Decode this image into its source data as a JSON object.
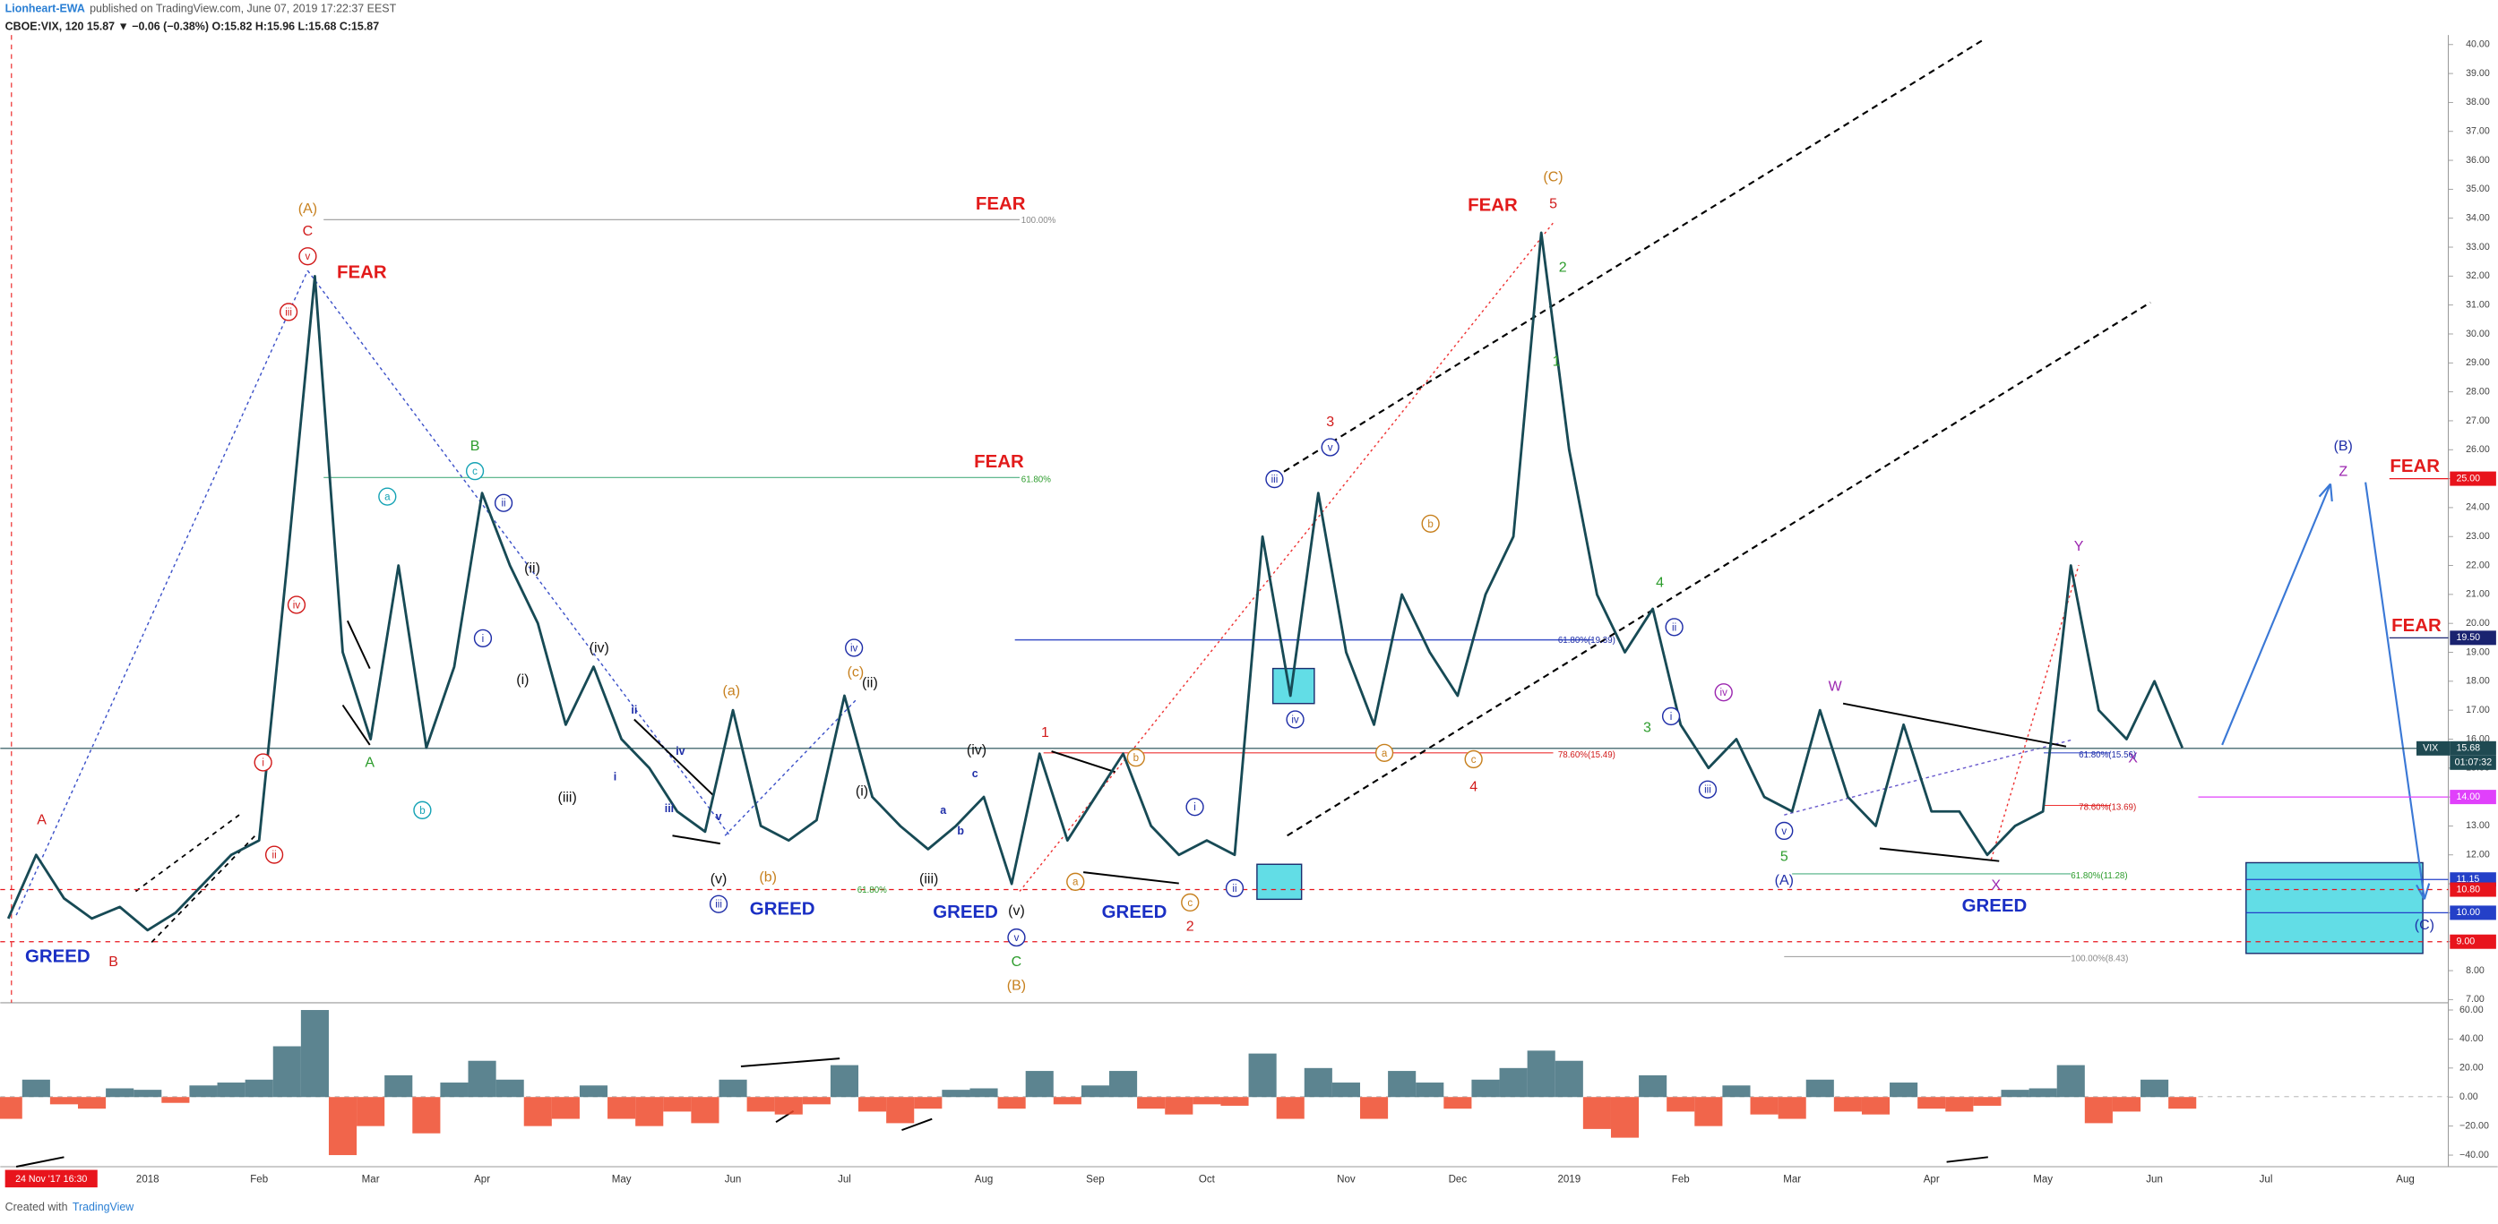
{
  "chart_data": {
    "type": "line",
    "author": "Lionheart-EWA",
    "published": "published on TradingView.com, June 07, 2019 17:22:37 EEST",
    "quote": "CBOE:VIX, 120  15.87  ▼ −0.06 (−0.38%)  O:15.82  H:15.96  L:15.68  C:15.87",
    "date_box": "24 Nov '17  16:30",
    "footer": "Created with",
    "footer_brand": "TradingView",
    "last_symbol": "VIX",
    "countdown": "01:07:32",
    "categories": [
      null,
      null,
      null,
      null,
      null,
      "2018",
      null,
      null,
      null,
      "Feb",
      null,
      null,
      null,
      "Mar",
      null,
      null,
      null,
      "Apr",
      null,
      null,
      null,
      null,
      "May",
      null,
      null,
      null,
      "Jun",
      null,
      null,
      null,
      "Jul",
      null,
      null,
      null,
      null,
      "Aug",
      null,
      null,
      null,
      "Sep",
      null,
      null,
      null,
      "Oct",
      null,
      null,
      null,
      null,
      "Nov",
      null,
      null,
      null,
      "Dec",
      null,
      null,
      null,
      "2019",
      null,
      null,
      null,
      "Feb",
      null,
      null,
      null,
      "Mar",
      null,
      null,
      null,
      null,
      "Apr",
      null,
      null,
      null,
      "May",
      null,
      null,
      null,
      "Jun",
      null,
      null,
      null,
      "Jul",
      null,
      null,
      null,
      null,
      "Aug",
      null
    ],
    "series": [
      {
        "name": "VIX",
        "color": "#174a55",
        "values": [
          9.8,
          12.0,
          10.5,
          9.8,
          10.2,
          9.4,
          10.0,
          11.0,
          12.0,
          12.5,
          22,
          32,
          19,
          16,
          22,
          15.7,
          18.5,
          24.5,
          22,
          20,
          16.5,
          18.5,
          16,
          15,
          13.5,
          12.8,
          17,
          13,
          12.5,
          13.2,
          17.5,
          14,
          13,
          12.2,
          13,
          14,
          11,
          15.5,
          12.5,
          14,
          15.5,
          13,
          12,
          12.5,
          12,
          23,
          17.5,
          24.5,
          19,
          16.5,
          21,
          19,
          17.5,
          21,
          23,
          33.5,
          26,
          21,
          19,
          20.5,
          16.5,
          15,
          16,
          14,
          13.5,
          17,
          14,
          13,
          16.5,
          13.5,
          13.5,
          12,
          13,
          13.5,
          22,
          17,
          16,
          18,
          15.7,
          null,
          null,
          null,
          null,
          null,
          null,
          null,
          null,
          null
        ]
      }
    ],
    "ylim": [
      7,
      40
    ],
    "yticks": [
      {
        "value": 7,
        "label": "7.00"
      },
      {
        "value": 8,
        "label": "8.00"
      },
      {
        "value": 9,
        "label": "9.00"
      },
      {
        "value": 10,
        "label": "10.00"
      },
      {
        "value": 11,
        "label": "11.00"
      },
      {
        "value": 12,
        "label": "12.00"
      },
      {
        "value": 13,
        "label": "13.00"
      },
      {
        "value": 14,
        "label": "14.00"
      },
      {
        "value": 15,
        "label": "15.00"
      },
      {
        "value": 16,
        "label": "16.00"
      },
      {
        "value": 17,
        "label": "17.00"
      },
      {
        "value": 18,
        "label": "18.00"
      },
      {
        "value": 19,
        "label": "19.00"
      },
      {
        "value": 20,
        "label": "20.00"
      },
      {
        "value": 21,
        "label": "21.00"
      },
      {
        "value": 22,
        "label": "22.00"
      },
      {
        "value": 23,
        "label": "23.00"
      },
      {
        "value": 24,
        "label": "24.00"
      },
      {
        "value": 25,
        "label": "25.00"
      },
      {
        "value": 26,
        "label": "26.00"
      },
      {
        "value": 27,
        "label": "27.00"
      },
      {
        "value": 28,
        "label": "28.00"
      },
      {
        "value": 29,
        "label": "29.00"
      },
      {
        "value": 30,
        "label": "30.00"
      },
      {
        "value": 31,
        "label": "31.00"
      },
      {
        "value": 32,
        "label": "32.00"
      },
      {
        "value": 33,
        "label": "33.00"
      },
      {
        "value": 34,
        "label": "34.00"
      },
      {
        "value": 35,
        "label": "35.00"
      },
      {
        "value": 36,
        "label": "36.00"
      },
      {
        "value": 37,
        "label": "37.00"
      },
      {
        "value": 38,
        "label": "38.00"
      },
      {
        "value": 39,
        "label": "39.00"
      },
      {
        "value": 40,
        "label": "40.00"
      }
    ],
    "oscillator": {
      "pos_color": "#3f6f7c",
      "neg_color": "#ef4a2c",
      "values": [
        -15,
        12,
        -5,
        -8,
        6,
        5,
        -4,
        8,
        10,
        12,
        35,
        60,
        -40,
        -20,
        15,
        -25,
        10,
        25,
        12,
        -20,
        -15,
        8,
        -15,
        -20,
        -10,
        -18,
        12,
        -10,
        -12,
        -5,
        22,
        -10,
        -18,
        -8,
        5,
        6,
        -8,
        18,
        -5,
        8,
        18,
        -8,
        -12,
        -5,
        -6,
        30,
        -15,
        20,
        10,
        -15,
        18,
        10,
        -8,
        12,
        20,
        32,
        25,
        -22,
        -28,
        15,
        -10,
        -20,
        8,
        -12,
        -15,
        12,
        -10,
        -12,
        10,
        -8,
        -10,
        -6,
        5,
        6,
        22,
        -18,
        -10,
        12,
        -8,
        null,
        null,
        null,
        null,
        null,
        null,
        null,
        null,
        null
      ]
    },
    "olim": [
      -48,
      65
    ],
    "oticks": [
      {
        "value": 60,
        "label": "60.00"
      },
      {
        "value": 40,
        "label": "40.00"
      },
      {
        "value": 20,
        "label": "20.00"
      },
      {
        "value": 0,
        "label": "0.00"
      },
      {
        "value": -20,
        "label": "−20.00"
      },
      {
        "value": -40,
        "label": "−40.00"
      }
    ],
    "price_tags": [
      {
        "value": 25,
        "label": "25.00",
        "color": "#e8141c"
      },
      {
        "value": 19.5,
        "label": "19.50",
        "color": "#1a2370"
      },
      {
        "value": 15.68,
        "label": "15.68",
        "color": "#1f4a52"
      },
      {
        "value": 14,
        "label": "14.00",
        "color": "#e040fb"
      },
      {
        "value": 11.15,
        "label": "11.15",
        "color": "#2440c8"
      },
      {
        "value": 10.8,
        "label": "10.80",
        "color": "#e8141c"
      },
      {
        "value": 10,
        "label": "10.00",
        "color": "#2440c8"
      },
      {
        "value": 9,
        "label": "9.00",
        "color": "#e8141c"
      }
    ],
    "annotations": [
      "FEAR",
      "FEAR",
      "FEAR",
      "FEAR",
      "FEAR",
      "FEAR",
      "GREED",
      "GREED",
      "GREED",
      "GREED",
      "GREED",
      "(A)",
      "C",
      "v",
      "iii",
      "iv",
      "i",
      "ii",
      "A",
      "B",
      "B",
      "c",
      "a",
      "A",
      "b",
      "ii",
      "i",
      "(ii)",
      "(i)",
      "(iii)",
      "(iv)",
      "ii",
      "iv",
      "i",
      "iii",
      "v",
      "(v)",
      "iii",
      "(a)",
      "(b)",
      "(c)",
      "iv",
      "(ii)",
      "(i)",
      "(iii)",
      "a",
      "b",
      "c",
      "(iv)",
      "(v)",
      "v",
      "C",
      "(B)",
      "1",
      "a",
      "b",
      "c",
      "2",
      "i",
      "ii",
      "iii",
      "iv",
      "v",
      "3",
      "b",
      "a",
      "c",
      "4",
      "(C)",
      "5",
      "2",
      "1",
      "4",
      "3",
      "ii",
      "i",
      "iv",
      "iii",
      "v",
      "5",
      "(A)",
      "W",
      "X",
      "Y",
      "X",
      "(B)",
      "Z",
      "(C)",
      "100.00%",
      "61.80%",
      "78.60%(15.49)",
      "61.80%(19.39)",
      "61.80%(11.28)",
      "100.00%(8.43)",
      "61.80%(15.56)",
      "78.60%(13.69)",
      "61.80%"
    ]
  }
}
